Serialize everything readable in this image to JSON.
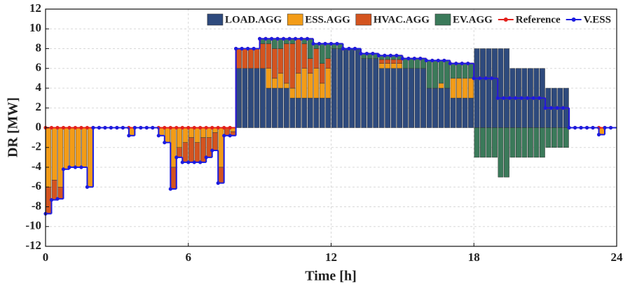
{
  "chart_data": {
    "type": "bar",
    "stacked": true,
    "x_label": "Time [h]",
    "y_label": "DR [MW]",
    "xlim": [
      0,
      24
    ],
    "xticks": [
      0,
      6,
      12,
      18,
      24
    ],
    "ylim": [
      -12,
      12
    ],
    "yticks": [
      -12,
      -10,
      -8,
      -6,
      -4,
      -2,
      0,
      2,
      4,
      6,
      8,
      10,
      12
    ],
    "grid": true,
    "legend": "top-right",
    "x": [
      0,
      0.25,
      0.5,
      0.75,
      1,
      1.25,
      1.5,
      1.75,
      2,
      2.25,
      2.5,
      2.75,
      3,
      3.25,
      3.5,
      3.75,
      4,
      4.25,
      4.5,
      4.75,
      5,
      5.25,
      5.5,
      5.75,
      6,
      6.25,
      6.5,
      6.75,
      7,
      7.25,
      7.5,
      7.75,
      8,
      8.25,
      8.5,
      8.75,
      9,
      9.25,
      9.5,
      9.75,
      10,
      10.25,
      10.5,
      10.75,
      11,
      11.25,
      11.5,
      11.75,
      12,
      12.25,
      12.5,
      12.75,
      13,
      13.25,
      13.5,
      13.75,
      14,
      14.25,
      14.5,
      14.75,
      15,
      15.25,
      15.5,
      15.75,
      16,
      16.25,
      16.5,
      16.75,
      17,
      17.25,
      17.5,
      17.75,
      18,
      18.25,
      18.5,
      18.75,
      19,
      19.25,
      19.5,
      19.75,
      20,
      20.25,
      20.5,
      20.75,
      21,
      21.25,
      21.5,
      21.75,
      22,
      22.25,
      22.5,
      22.75,
      23,
      23.25,
      23.5,
      23.75
    ],
    "series": [
      {
        "name": "LOAD.AGG",
        "type": "bar",
        "color": "#2e4a7d",
        "values": [
          0,
          0,
          0,
          0,
          0,
          0,
          0,
          0,
          0,
          0,
          0,
          0,
          0,
          0,
          0,
          0,
          0,
          0,
          0,
          0,
          0,
          0,
          0,
          0,
          0,
          0,
          0,
          0,
          0,
          0,
          0,
          0,
          6,
          6,
          6,
          6,
          6,
          4,
          4,
          4,
          4,
          3,
          3,
          3,
          3,
          3,
          3,
          3,
          8,
          8,
          8,
          8,
          8,
          7,
          7,
          7,
          6,
          6,
          6,
          6,
          6,
          6,
          6,
          6,
          4,
          4,
          4,
          4,
          3,
          3,
          3,
          3,
          8,
          8,
          8,
          8,
          8,
          8,
          6,
          6,
          6,
          6,
          6,
          6,
          4,
          4,
          4,
          4,
          0,
          0,
          0,
          0,
          0,
          0,
          0,
          0
        ]
      },
      {
        "name": "ESS.AGG",
        "type": "bar",
        "color": "#f39c17",
        "values": [
          -6,
          -5.3,
          -6,
          -4.2,
          -4,
          -4,
          -4,
          -6,
          0,
          0,
          0,
          0,
          0,
          0,
          -0.8,
          0,
          0,
          0,
          0,
          -0.8,
          -1.5,
          -4,
          -2,
          -1.5,
          -1,
          -1.5,
          -1,
          -1,
          -0.5,
          -4,
          0,
          -0.4,
          0,
          0,
          0,
          0,
          0,
          2,
          1,
          1.5,
          0.5,
          1,
          2.5,
          3,
          2.5,
          3,
          1.5,
          3,
          0,
          0,
          0,
          0,
          0,
          0,
          0,
          0,
          0.5,
          0.5,
          0.5,
          0.5,
          0,
          0,
          0,
          0,
          0,
          0,
          0.5,
          0,
          2,
          2,
          2,
          2,
          0,
          0,
          0,
          0,
          0,
          0,
          0,
          0,
          0,
          0,
          0,
          0,
          0,
          0,
          0,
          0,
          0,
          0,
          0,
          0,
          0,
          -0.7,
          0,
          0
        ]
      },
      {
        "name": "HVAC.AGG",
        "type": "bar",
        "color": "#d4541f",
        "values": [
          -2.7,
          -2,
          -1.2,
          0,
          0,
          0,
          0,
          0,
          0,
          0,
          0,
          0,
          0,
          0,
          0,
          0,
          0,
          0,
          0,
          0,
          0,
          -2.2,
          -1,
          -2,
          -2.5,
          -2,
          -2.5,
          -2,
          -1.8,
          -1.6,
          -0.8,
          -0.4,
          2,
          2,
          2,
          2,
          2.5,
          2.5,
          3,
          2.5,
          4,
          4.5,
          3.5,
          2.5,
          1.5,
          2,
          2,
          1,
          0,
          0,
          0,
          0,
          0,
          0,
          0,
          0,
          0.4,
          0.4,
          0.4,
          0.4,
          0,
          0,
          0,
          0,
          0,
          0,
          0,
          0,
          0,
          0,
          0,
          0,
          0,
          0,
          0,
          0,
          0,
          0,
          0,
          0,
          0,
          0,
          0,
          0,
          0,
          0,
          0,
          0,
          0,
          0,
          0,
          0,
          0,
          0,
          0,
          0
        ]
      },
      {
        "name": "EV.AGG",
        "type": "bar",
        "color": "#3b7a5a",
        "values": [
          0,
          0,
          0,
          0,
          0,
          0,
          0,
          0,
          0,
          0,
          0,
          0,
          0,
          0,
          0,
          0,
          0,
          0,
          0,
          0,
          0,
          0,
          0,
          0,
          0,
          0,
          0,
          0,
          0,
          0,
          0,
          0,
          0,
          0,
          0,
          0,
          0.5,
          0.5,
          1,
          1,
          0.5,
          0.5,
          0,
          0.5,
          2,
          0.5,
          2,
          1.5,
          0.5,
          0.5,
          0,
          0,
          0,
          0.5,
          0.5,
          0.5,
          0.4,
          0.4,
          0.4,
          0.4,
          1,
          1,
          1,
          1,
          2.8,
          2.8,
          2.3,
          2.8,
          1.5,
          1.5,
          1.5,
          1.5,
          -3,
          -3,
          -3,
          -3,
          -5,
          -5,
          -3,
          -3,
          -3,
          -3,
          -3,
          -3,
          -2,
          -2,
          -2,
          -2,
          0,
          0,
          0,
          0,
          0,
          0,
          0,
          0
        ]
      },
      {
        "name": "Reference",
        "type": "line",
        "color": "#e3211c",
        "values": [
          0,
          0,
          0,
          0,
          0,
          0,
          0,
          0,
          0,
          0,
          0,
          0,
          0,
          0,
          0,
          0,
          0,
          0,
          0,
          0,
          0,
          0,
          0,
          0,
          0,
          0,
          0,
          0,
          0,
          0,
          0,
          0,
          8,
          8,
          8,
          8,
          9,
          9,
          9,
          9,
          9,
          9,
          9,
          9,
          9,
          8.5,
          8.5,
          8.5,
          8.5,
          8.5,
          8,
          8,
          8,
          7.5,
          7.5,
          7.5,
          7.3,
          7.3,
          7.3,
          7.3,
          7,
          7,
          7,
          7,
          6.8,
          6.8,
          6.8,
          6.8,
          6.5,
          6.5,
          6.5,
          6.5,
          5,
          5,
          5,
          5,
          3,
          3,
          3,
          3,
          3,
          3,
          3,
          3,
          2,
          2,
          2,
          2,
          0,
          0,
          0,
          0,
          0,
          0,
          0,
          0
        ]
      },
      {
        "name": "V.ESS",
        "type": "line",
        "color": "#1c1ce0",
        "values": [
          -8.7,
          -7.3,
          -7.2,
          -4.2,
          -4,
          -4,
          -4,
          -6,
          0,
          0,
          0,
          0,
          0,
          0,
          -0.8,
          0,
          0,
          0,
          0,
          -0.8,
          -1.5,
          -6.2,
          -3,
          -3.5,
          -3.5,
          -3.5,
          -3.5,
          -3,
          -2.3,
          -5.6,
          -0.8,
          -0.8,
          8,
          8,
          8,
          8,
          9,
          9,
          9,
          9,
          9,
          9,
          9,
          9,
          9,
          8.5,
          8.5,
          8.5,
          8.5,
          8.5,
          8,
          8,
          8,
          7.5,
          7.5,
          7.5,
          7.3,
          7.3,
          7.3,
          7.3,
          7,
          7,
          7,
          7,
          6.8,
          6.8,
          6.8,
          6.8,
          6.5,
          6.5,
          6.5,
          6.5,
          5,
          5,
          5,
          5,
          3,
          3,
          3,
          3,
          3,
          3,
          3,
          3,
          2,
          2,
          2,
          2,
          0,
          0,
          0,
          0,
          0,
          -0.7,
          0,
          0
        ]
      }
    ]
  }
}
